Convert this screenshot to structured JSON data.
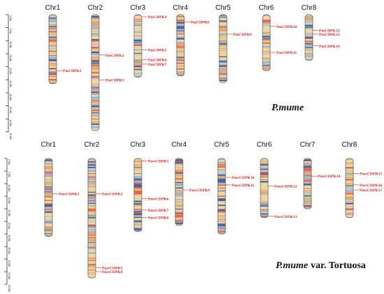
{
  "panels": [
    {
      "id": "top",
      "species": "P.mume",
      "species_suffix": "",
      "scale_ticks": [
        "0 Mb",
        "5 Mb",
        "10 Mb",
        "15 Mb",
        "20 Mb",
        "25 Mb",
        "30 Mb",
        "35 Mb",
        "40 Mb",
        "45 Mb"
      ],
      "chromosomes": [
        {
          "name": "Chr1",
          "length": 26.5,
          "genes": [
            {
              "label": "PmCDPK1",
              "pos": 21.5
            }
          ]
        },
        {
          "name": "Chr2",
          "length": 44.5,
          "genes": [
            {
              "label": "PmCDPK2",
              "pos": 15.5
            },
            {
              "label": "PmCDPK3",
              "pos": 25.0
            }
          ]
        },
        {
          "name": "Chr3",
          "length": 24.0,
          "genes": [
            {
              "label": "PmCDPK4",
              "pos": 0.8
            },
            {
              "label": "PmCDPK5",
              "pos": 13.5
            },
            {
              "label": "PmCDPK6",
              "pos": 17.3
            },
            {
              "label": "PmCDPK7",
              "pos": 19.0
            }
          ]
        },
        {
          "name": "Chr4",
          "length": 23.5,
          "genes": [
            {
              "label": "PmCDPK8",
              "pos": 2.8
            }
          ]
        },
        {
          "name": "Chr5",
          "length": 26.0,
          "genes": [
            {
              "label": "PmCDPK9",
              "pos": 7.5
            }
          ]
        },
        {
          "name": "Chr6",
          "length": 21.5,
          "genes": [
            {
              "label": "PmCDPK10",
              "pos": 4.5
            },
            {
              "label": "PmCDPK11",
              "pos": 14.5
            }
          ]
        },
        {
          "name": "Chr8",
          "length": 17.5,
          "genes": [
            {
              "label": "PmCDPK12",
              "pos": 6.0
            },
            {
              "label": "PmCDPK13",
              "pos": 7.5
            },
            {
              "label": "PmCDPK14",
              "pos": 12.0
            }
          ]
        }
      ]
    },
    {
      "id": "bottom",
      "species": "P.mume",
      "species_suffix": "var. Tortuosa",
      "scale_ticks": [
        "0 Mb",
        "5 Mb",
        "10 Mb",
        "15 Mb",
        "20 Mb",
        "25 Mb",
        "30 Mb",
        "35 Mb",
        "40 Mb",
        "45 Mb",
        "50 Mb"
      ],
      "chromosomes": [
        {
          "name": "Chr1",
          "length": 31.0,
          "genes": [
            {
              "label": "PmvCDPK1",
              "pos": 14.0
            }
          ]
        },
        {
          "name": "Chr2",
          "length": 47.5,
          "genes": [
            {
              "label": "PmvCDPK2",
              "pos": 14.0
            },
            {
              "label": "PmvCDPK3",
              "pos": 43.5
            },
            {
              "label": "PmvCDPK4",
              "pos": 45.0
            }
          ]
        },
        {
          "name": "Chr3",
          "length": 29.0,
          "genes": [
            {
              "label": "PmvCDPK5",
              "pos": 1.0
            },
            {
              "label": "PmvCDPK6",
              "pos": 16.0
            },
            {
              "label": "PmvCDPK7",
              "pos": 20.5
            },
            {
              "label": "PmvCDPK8",
              "pos": 23.5
            }
          ]
        },
        {
          "name": "Chr4",
          "length": 26.5,
          "genes": [
            {
              "label": "PmvCDPK9",
              "pos": 12.5
            }
          ]
        },
        {
          "name": "Chr5",
          "length": 30.0,
          "genes": [
            {
              "label": "PmvCDPK10",
              "pos": 7.5
            },
            {
              "label": "PmvCDPK11",
              "pos": 10.5
            }
          ]
        },
        {
          "name": "Chr6",
          "length": 23.5,
          "genes": [
            {
              "label": "PmvCDPK12",
              "pos": 11.0
            },
            {
              "label": "PmvCDPK13",
              "pos": 23.0
            }
          ]
        },
        {
          "name": "Chr7",
          "length": 20.0,
          "genes": [
            {
              "label": "PmvCDPK14",
              "pos": 7.0
            }
          ]
        },
        {
          "name": "Chr8",
          "length": 23.5,
          "genes": [
            {
              "label": "PmvCDPK15",
              "pos": 6.0
            },
            {
              "label": "PmvCDPK16",
              "pos": 10.5
            },
            {
              "label": "PmvCDPK17",
              "pos": 12.5
            }
          ]
        }
      ]
    }
  ],
  "colors": {
    "label_red": "#e32020",
    "chromosome_base": "#e9d8a6",
    "band_red": "#e8674a",
    "band_blue": "#3f63a8",
    "band_light_blue": "#9bb8d8",
    "band_tan": "#cfb87c"
  }
}
